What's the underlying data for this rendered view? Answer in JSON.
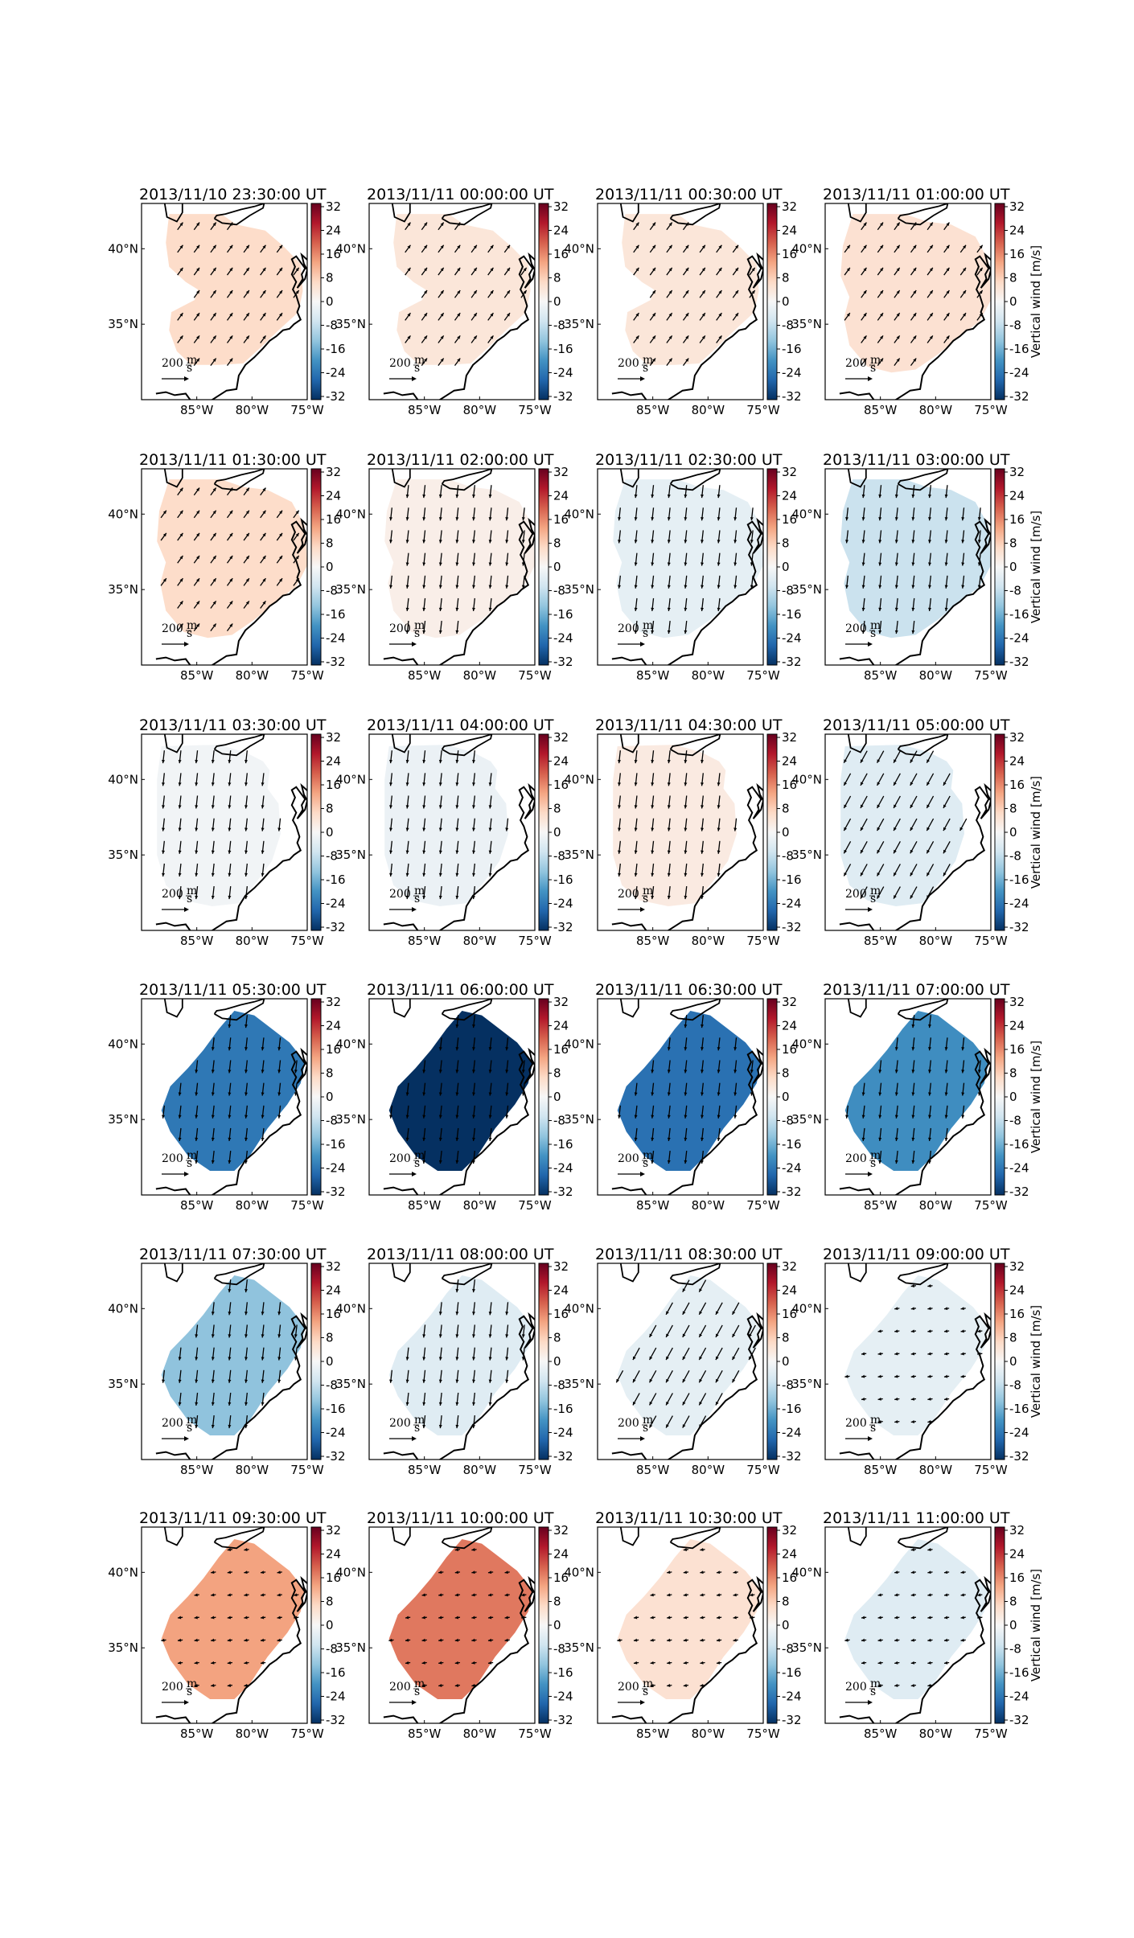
{
  "figure": {
    "colorbar_ticks": [
      "32",
      "24",
      "16",
      "8",
      "0",
      "-8",
      "-16",
      "-24",
      "-32"
    ],
    "colorbar_label": "Vertical wind [m/s]",
    "colormap": [
      "#053061",
      "#2166ac",
      "#4393c3",
      "#92c5de",
      "#d1e5f0",
      "#f7f7f7",
      "#fddbc7",
      "#f4a582",
      "#d6604d",
      "#b2182b",
      "#67001f"
    ],
    "lon_ticks": [
      "85°W",
      "80°W",
      "75°W"
    ],
    "lat_ticks": [
      "40°N",
      "35°N"
    ],
    "quiver_key": {
      "value": "200",
      "unit_num": "m",
      "unit_den": "s"
    }
  },
  "chart_data": {
    "type": "heatmap",
    "variable": "Vertical wind",
    "units": "m/s",
    "colorbar_range": [
      -32,
      32
    ],
    "x_range": [
      -90,
      -75
    ],
    "y_range": [
      30,
      43
    ],
    "panels": [
      {
        "title": "2013/11/10 23:30:00 UT",
        "vertical_wind": 6,
        "arrow_dir": "NE",
        "extent": "northeast"
      },
      {
        "title": "2013/11/11 00:00:00 UT",
        "vertical_wind": 4,
        "arrow_dir": "NE",
        "extent": "northeast"
      },
      {
        "title": "2013/11/11 00:30:00 UT",
        "vertical_wind": 4,
        "arrow_dir": "NE",
        "extent": "northeast"
      },
      {
        "title": "2013/11/11 01:00:00 UT",
        "vertical_wind": 5,
        "arrow_dir": "NE",
        "extent": "full"
      },
      {
        "title": "2013/11/11 01:30:00 UT",
        "vertical_wind": 6,
        "arrow_dir": "NE",
        "extent": "full"
      },
      {
        "title": "2013/11/11 02:00:00 UT",
        "vertical_wind": 2,
        "arrow_dir": "S",
        "extent": "full"
      },
      {
        "title": "2013/11/11 02:30:00 UT",
        "vertical_wind": -3,
        "arrow_dir": "S",
        "extent": "full"
      },
      {
        "title": "2013/11/11 03:00:00 UT",
        "vertical_wind": -7,
        "arrow_dir": "S",
        "extent": "full"
      },
      {
        "title": "2013/11/11 03:30:00 UT",
        "vertical_wind": -1,
        "arrow_dir": "S",
        "extent": "west"
      },
      {
        "title": "2013/11/11 04:00:00 UT",
        "vertical_wind": -2,
        "arrow_dir": "S",
        "extent": "west"
      },
      {
        "title": "2013/11/11 04:30:00 UT",
        "vertical_wind": 3,
        "arrow_dir": "S",
        "extent": "west"
      },
      {
        "title": "2013/11/11 05:00:00 UT",
        "vertical_wind": -4,
        "arrow_dir": "SW",
        "extent": "west"
      },
      {
        "title": "2013/11/11 05:30:00 UT",
        "vertical_wind": -23,
        "arrow_dir": "S",
        "extent": "diamond"
      },
      {
        "title": "2013/11/11 06:00:00 UT",
        "vertical_wind": -32,
        "arrow_dir": "S",
        "extent": "diamond"
      },
      {
        "title": "2013/11/11 06:30:00 UT",
        "vertical_wind": -24,
        "arrow_dir": "S",
        "extent": "diamond"
      },
      {
        "title": "2013/11/11 07:00:00 UT",
        "vertical_wind": -20,
        "arrow_dir": "S",
        "extent": "diamond"
      },
      {
        "title": "2013/11/11 07:30:00 UT",
        "vertical_wind": -13,
        "arrow_dir": "S",
        "extent": "diamond"
      },
      {
        "title": "2013/11/11 08:00:00 UT",
        "vertical_wind": -4,
        "arrow_dir": "S",
        "extent": "diamond"
      },
      {
        "title": "2013/11/11 08:30:00 UT",
        "vertical_wind": -3,
        "arrow_dir": "SW",
        "extent": "diamond"
      },
      {
        "title": "2013/11/11 09:00:00 UT",
        "vertical_wind": -3,
        "arrow_dir": "W",
        "extent": "diamond"
      },
      {
        "title": "2013/11/11 09:30:00 UT",
        "vertical_wind": 13,
        "arrow_dir": "W",
        "extent": "diamond"
      },
      {
        "title": "2013/11/11 10:00:00 UT",
        "vertical_wind": 17,
        "arrow_dir": "W",
        "extent": "diamond"
      },
      {
        "title": "2013/11/11 10:30:00 UT",
        "vertical_wind": 5,
        "arrow_dir": "W",
        "extent": "diamond"
      },
      {
        "title": "2013/11/11 11:00:00 UT",
        "vertical_wind": -4,
        "arrow_dir": "W",
        "extent": "diamond"
      }
    ]
  }
}
